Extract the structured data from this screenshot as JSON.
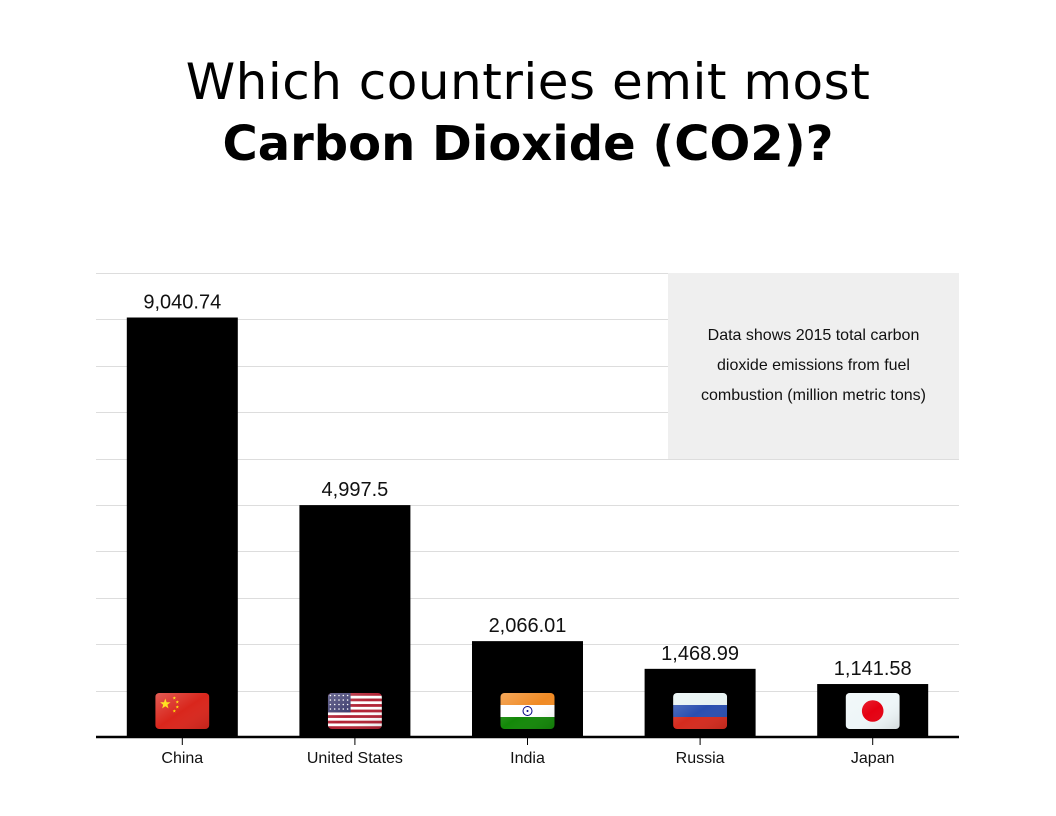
{
  "title": {
    "line1": "Which countries emit most",
    "line2": "Carbon Dioxide (CO2)?"
  },
  "note": "Data shows 2015 total carbon dioxide emissions from fuel combustion (million metric tons)",
  "chart_data": {
    "type": "bar",
    "categories": [
      "China",
      "United States",
      "India",
      "Russia",
      "Japan"
    ],
    "values": [
      9040.74,
      4997.5,
      2066.01,
      1468.99,
      1141.58
    ],
    "value_labels": [
      "9,040.74",
      "4,997.5",
      "2,066.01",
      "1,468.99",
      "1,141.58"
    ],
    "flags": [
      "china-flag-icon",
      "united-states-flag-icon",
      "india-flag-icon",
      "russia-flag-icon",
      "japan-flag-icon"
    ],
    "ylim": [
      0,
      10000
    ],
    "grid": true,
    "bar_color": "#000000",
    "grid_color": "#dddddd"
  }
}
